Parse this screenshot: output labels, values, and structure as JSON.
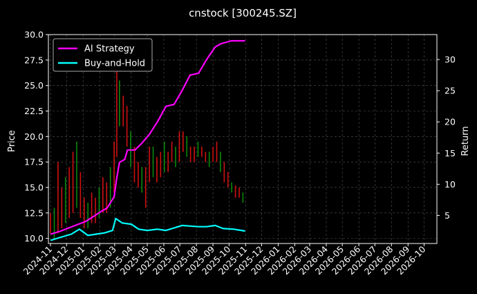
{
  "chart_data": {
    "type": "line",
    "title": "cnstock [300245.SZ]",
    "ylabel_left": "Price",
    "ylabel_right": "Return",
    "xlabel": "",
    "y_left_lim": [
      9.5,
      30.0
    ],
    "y_right_lim": [
      0.5,
      34.0
    ],
    "y_left_ticks": [
      "10.0",
      "12.5",
      "15.0",
      "17.5",
      "20.0",
      "22.5",
      "25.0",
      "27.5",
      "30.0"
    ],
    "y_right_ticks": [
      "5",
      "10",
      "15",
      "20",
      "25",
      "30"
    ],
    "x_ticks": [
      "2024-11",
      "2024-12",
      "2025-01",
      "2025-02",
      "2025-03",
      "2025-04",
      "2025-05",
      "2025-06",
      "2025-07",
      "2025-08",
      "2025-09",
      "2025-10",
      "2025-11",
      "2025-12",
      "2026-01",
      "2026-02",
      "2026-03",
      "2026-04",
      "2026-05",
      "2026-06",
      "2026-07",
      "2026-08",
      "2026-09",
      "2026-10"
    ],
    "grid": true,
    "legend_position": "top-left",
    "series": [
      {
        "name": "AI Strategy",
        "color": "#ff00ff",
        "axis": "right",
        "points": [
          [
            "2024-11-01",
            2.0
          ],
          [
            "2024-11-20",
            2.5
          ],
          [
            "2024-12-05",
            3.0
          ],
          [
            "2024-12-20",
            3.5
          ],
          [
            "2025-01-05",
            4.0
          ],
          [
            "2025-01-20",
            4.8
          ],
          [
            "2025-02-01",
            5.5
          ],
          [
            "2025-02-15",
            6.2
          ],
          [
            "2025-02-28",
            8.0
          ],
          [
            "2025-03-05",
            11.0
          ],
          [
            "2025-03-10",
            13.5
          ],
          [
            "2025-03-20",
            14.0
          ],
          [
            "2025-03-25",
            15.5
          ],
          [
            "2025-04-08",
            15.5
          ],
          [
            "2025-04-20",
            16.5
          ],
          [
            "2025-05-05",
            18.0
          ],
          [
            "2025-05-20",
            20.0
          ],
          [
            "2025-06-05",
            22.5
          ],
          [
            "2025-06-20",
            22.8
          ],
          [
            "2025-07-05",
            25.0
          ],
          [
            "2025-07-20",
            27.5
          ],
          [
            "2025-08-05",
            27.8
          ],
          [
            "2025-08-20",
            30.0
          ],
          [
            "2025-09-05",
            32.0
          ],
          [
            "2025-09-15",
            32.5
          ],
          [
            "2025-10-05",
            33.0
          ],
          [
            "2025-10-31",
            33.0
          ]
        ]
      },
      {
        "name": "Buy-and-Hold",
        "color": "#00ffff",
        "axis": "right",
        "points": [
          [
            "2024-11-01",
            1.0
          ],
          [
            "2024-11-20",
            1.5
          ],
          [
            "2024-12-10",
            2.0
          ],
          [
            "2024-12-25",
            2.8
          ],
          [
            "2025-01-10",
            1.8
          ],
          [
            "2025-01-25",
            2.0
          ],
          [
            "2025-02-10",
            2.2
          ],
          [
            "2025-02-25",
            2.6
          ],
          [
            "2025-03-03",
            4.5
          ],
          [
            "2025-03-15",
            3.8
          ],
          [
            "2025-04-01",
            3.6
          ],
          [
            "2025-04-15",
            2.8
          ],
          [
            "2025-05-01",
            2.6
          ],
          [
            "2025-05-20",
            2.8
          ],
          [
            "2025-06-05",
            2.6
          ],
          [
            "2025-06-20",
            3.0
          ],
          [
            "2025-07-05",
            3.4
          ],
          [
            "2025-07-20",
            3.3
          ],
          [
            "2025-08-05",
            3.2
          ],
          [
            "2025-08-20",
            3.2
          ],
          [
            "2025-09-05",
            3.4
          ],
          [
            "2025-09-20",
            2.9
          ],
          [
            "2025-10-10",
            2.8
          ],
          [
            "2025-10-31",
            2.5
          ]
        ]
      }
    ],
    "price_candles": [
      [
        "2024-11-01",
        10.5,
        12.5
      ],
      [
        "2024-11-08",
        10.0,
        13.0
      ],
      [
        "2024-11-15",
        10.5,
        17.5
      ],
      [
        "2024-11-22",
        11.0,
        15.0
      ],
      [
        "2024-11-29",
        11.5,
        16.0
      ],
      [
        "2024-12-06",
        12.0,
        17.0
      ],
      [
        "2024-12-13",
        12.5,
        18.5
      ],
      [
        "2024-12-20",
        13.0,
        19.5
      ],
      [
        "2024-12-27",
        12.0,
        16.5
      ],
      [
        "2025-01-03",
        11.0,
        14.0
      ],
      [
        "2025-01-10",
        11.0,
        13.5
      ],
      [
        "2025-01-17",
        11.5,
        14.5
      ],
      [
        "2025-01-24",
        11.5,
        14.0
      ],
      [
        "2025-01-31",
        12.0,
        15.0
      ],
      [
        "2025-02-07",
        12.5,
        16.0
      ],
      [
        "2025-02-14",
        12.5,
        15.5
      ],
      [
        "2025-02-21",
        13.0,
        17.0
      ],
      [
        "2025-02-28",
        14.5,
        19.5
      ],
      [
        "2025-03-05",
        18.0,
        26.5
      ],
      [
        "2025-03-10",
        21.0,
        25.5
      ],
      [
        "2025-03-17",
        21.0,
        24.0
      ],
      [
        "2025-03-24",
        19.0,
        23.0
      ],
      [
        "2025-03-31",
        17.0,
        20.5
      ],
      [
        "2025-04-07",
        15.5,
        19.0
      ],
      [
        "2025-04-14",
        15.0,
        17.5
      ],
      [
        "2025-04-21",
        14.5,
        17.0
      ],
      [
        "2025-04-28",
        13.0,
        17.0
      ],
      [
        "2025-05-05",
        15.5,
        19.0
      ],
      [
        "2025-05-12",
        16.0,
        19.0
      ],
      [
        "2025-05-19",
        15.5,
        18.0
      ],
      [
        "2025-05-26",
        16.0,
        18.5
      ],
      [
        "2025-06-02",
        16.5,
        19.5
      ],
      [
        "2025-06-09",
        16.5,
        18.5
      ],
      [
        "2025-06-16",
        17.5,
        19.5
      ],
      [
        "2025-06-23",
        17.0,
        19.0
      ],
      [
        "2025-06-30",
        17.5,
        20.5
      ],
      [
        "2025-07-07",
        18.5,
        20.5
      ],
      [
        "2025-07-14",
        18.0,
        20.0
      ],
      [
        "2025-07-21",
        17.5,
        19.0
      ],
      [
        "2025-07-28",
        17.5,
        19.0
      ],
      [
        "2025-08-04",
        18.0,
        19.5
      ],
      [
        "2025-08-11",
        18.0,
        19.0
      ],
      [
        "2025-08-18",
        17.5,
        18.5
      ],
      [
        "2025-08-25",
        17.0,
        18.5
      ],
      [
        "2025-09-01",
        17.5,
        19.0
      ],
      [
        "2025-09-08",
        17.5,
        19.5
      ],
      [
        "2025-09-15",
        16.5,
        18.5
      ],
      [
        "2025-09-22",
        15.5,
        17.5
      ],
      [
        "2025-09-29",
        15.0,
        16.5
      ],
      [
        "2025-10-06",
        14.5,
        15.5
      ],
      [
        "2025-10-13",
        14.0,
        15.2
      ],
      [
        "2025-10-20",
        14.0,
        15.0
      ],
      [
        "2025-10-27",
        13.5,
        14.5
      ]
    ]
  }
}
